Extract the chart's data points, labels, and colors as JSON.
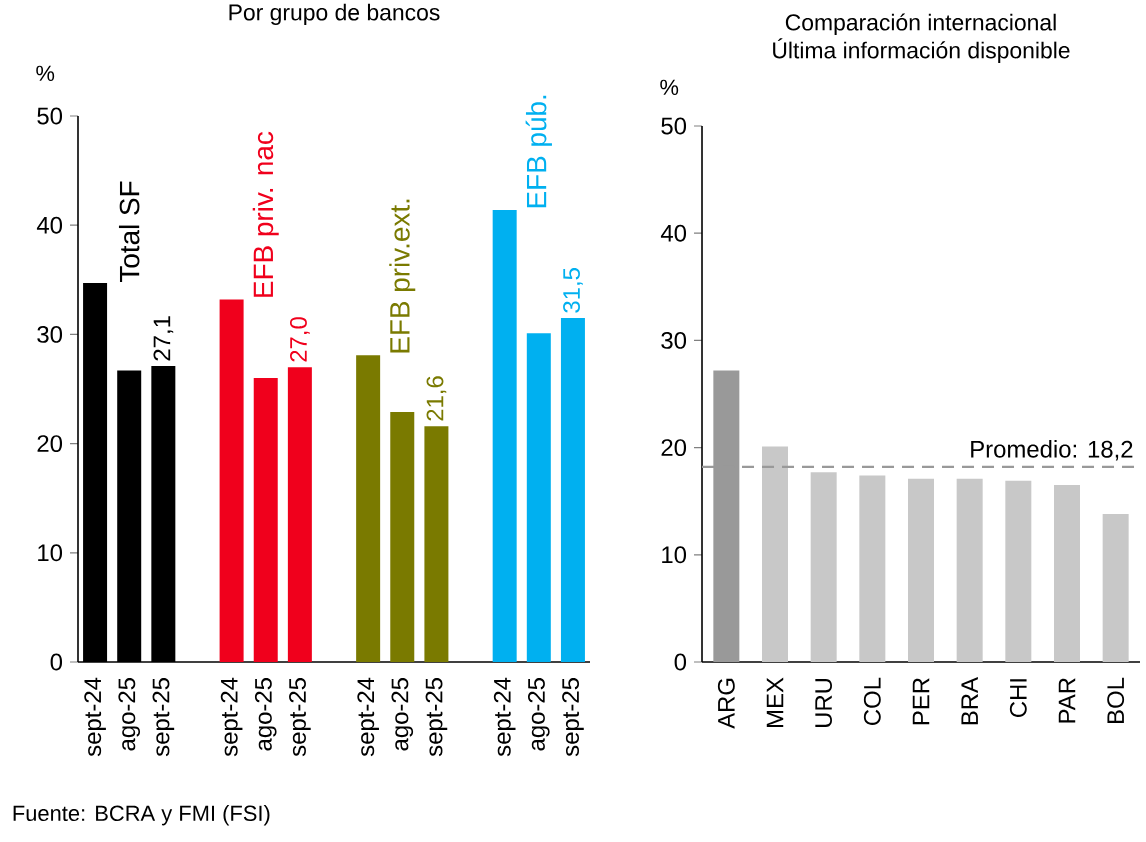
{
  "chart_data": [
    {
      "type": "bar",
      "title": "Por grupo de bancos",
      "ylabel": "%",
      "categories": [
        "sept-24",
        "ago-25",
        "sept-25",
        null,
        "sept-24",
        "ago-25",
        "sept-25",
        null,
        "sept-24",
        "ago-25",
        "sept-25",
        null,
        "sept-24",
        "ago-25",
        "sept-25"
      ],
      "series": [
        {
          "name": "Total SF",
          "color": "#000000",
          "values": [
            34.7,
            26.7,
            27.1,
            null,
            null,
            null,
            null,
            null,
            null,
            null,
            null,
            null,
            null,
            null,
            null
          ],
          "value_labels": [
            null,
            null,
            "27,1",
            null,
            null,
            null,
            null,
            null,
            null,
            null,
            null,
            null,
            null,
            null,
            null
          ]
        },
        {
          "name": "EFB priv. nac",
          "color": "#f0001c",
          "values": [
            null,
            null,
            null,
            null,
            33.2,
            26.0,
            27.0,
            null,
            null,
            null,
            null,
            null,
            null,
            null,
            null
          ],
          "value_labels": [
            null,
            null,
            null,
            null,
            null,
            null,
            "27,0",
            null,
            null,
            null,
            null,
            null,
            null,
            null,
            null
          ]
        },
        {
          "name": "EFB priv.ext.",
          "color": "#7a7a00",
          "values": [
            null,
            null,
            null,
            null,
            null,
            null,
            null,
            null,
            28.1,
            22.9,
            21.6,
            null,
            null,
            null,
            null
          ],
          "value_labels": [
            null,
            null,
            null,
            null,
            null,
            null,
            null,
            null,
            null,
            null,
            "21,6",
            null,
            null,
            null,
            null
          ]
        },
        {
          "name": "EFB púb.",
          "color": "#00b0f0",
          "values": [
            null,
            null,
            null,
            null,
            null,
            null,
            null,
            null,
            null,
            null,
            null,
            null,
            41.4,
            30.1,
            31.5
          ],
          "value_labels": [
            null,
            null,
            null,
            null,
            null,
            null,
            null,
            null,
            null,
            null,
            null,
            null,
            null,
            null,
            "31,5"
          ]
        }
      ],
      "ylim": [
        0,
        50
      ],
      "yticks": [
        0,
        10,
        20,
        30,
        40,
        50
      ],
      "annotations": [
        "Fuente: BCRA y FMI (FSI)"
      ]
    },
    {
      "type": "bar",
      "title": "Comparación internacional",
      "subtitle": "Última información disponible",
      "ylabel": "%",
      "categories": [
        "ARG",
        "MEX",
        "URU",
        "COL",
        "PER",
        "BRA",
        "CHI",
        "PAR",
        "BOL"
      ],
      "values": [
        27.2,
        20.1,
        17.7,
        17.4,
        17.1,
        17.1,
        16.9,
        16.5,
        13.8
      ],
      "colors": [
        "#999999",
        "#c8c8c8",
        "#c8c8c8",
        "#c8c8c8",
        "#c8c8c8",
        "#c8c8c8",
        "#c8c8c8",
        "#c8c8c8",
        "#c8c8c8"
      ],
      "ylim": [
        0,
        50
      ],
      "yticks": [
        0,
        10,
        20,
        30,
        40,
        50
      ],
      "ref_lines": [
        {
          "axis": "y",
          "value": 18.2,
          "label": "Promedio: 18,2",
          "color": "#999999",
          "line_style": "dashed"
        }
      ]
    }
  ]
}
